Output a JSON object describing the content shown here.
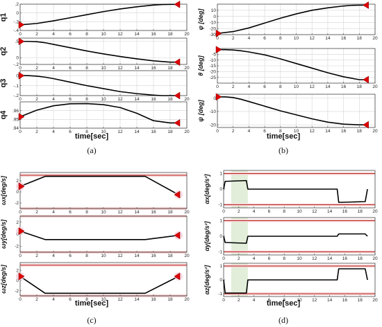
{
  "captions": {
    "a": "(a)",
    "b": "(b)",
    "c": "(c)",
    "d": "(d)"
  },
  "time_label": "time[sec]",
  "chart_data": [
    {
      "id": "q1",
      "type": "line",
      "group": "a",
      "ylabel": "q1",
      "xlim": [
        0,
        20
      ],
      "xticks": [
        0,
        2,
        4,
        6,
        8,
        10,
        12,
        14,
        16,
        18,
        20
      ],
      "ylim": [
        -0.4,
        0.2
      ],
      "yticks": [
        0.2,
        0,
        -0.2,
        -0.4
      ],
      "grid": true,
      "show_xticks": true,
      "series": [
        {
          "x": [
            0,
            2,
            4,
            6,
            8,
            10,
            12,
            14,
            16,
            17,
            18,
            19
          ],
          "y": [
            -0.27,
            -0.24,
            -0.18,
            -0.11,
            -0.04,
            0.03,
            0.09,
            0.14,
            0.18,
            0.19,
            0.195,
            0.195
          ]
        }
      ],
      "markers": [
        {
          "x": 0,
          "y": -0.27,
          "dir": "right"
        },
        {
          "x": 19,
          "y": 0.195,
          "dir": "left"
        }
      ]
    },
    {
      "id": "q2",
      "type": "line",
      "group": "a",
      "ylabel": "q2",
      "xlim": [
        0,
        20
      ],
      "xticks": [
        0,
        2,
        4,
        6,
        8,
        10,
        12,
        14,
        16,
        18,
        20
      ],
      "ylim": [
        -0.2,
        0.6
      ],
      "yticks": [
        0.5,
        0,
        -0.2
      ],
      "grid": true,
      "show_xticks": true,
      "series": [
        {
          "x": [
            0,
            1,
            2,
            3,
            4,
            6,
            8,
            10,
            12,
            14,
            16,
            18,
            19
          ],
          "y": [
            0.5,
            0.5,
            0.49,
            0.46,
            0.41,
            0.31,
            0.21,
            0.12,
            0.04,
            -0.03,
            -0.09,
            -0.13,
            -0.13
          ]
        }
      ],
      "markers": [
        {
          "x": 0,
          "y": 0.5,
          "dir": "right"
        },
        {
          "x": 19,
          "y": -0.13,
          "dir": "left"
        }
      ]
    },
    {
      "id": "q3",
      "type": "line",
      "group": "a",
      "ylabel": "q3",
      "xlim": [
        0,
        20
      ],
      "xticks": [
        0,
        2,
        4,
        6,
        8,
        10,
        12,
        14,
        16,
        18,
        20
      ],
      "ylim": [
        -0.2,
        0.05
      ],
      "yticks": [
        0,
        -0.1,
        -0.2
      ],
      "grid": true,
      "show_xticks": true,
      "series": [
        {
          "x": [
            0,
            1,
            2,
            3,
            4,
            6,
            8,
            10,
            12,
            14,
            16,
            17,
            18,
            19
          ],
          "y": [
            0,
            0,
            -0.005,
            -0.015,
            -0.03,
            -0.065,
            -0.1,
            -0.13,
            -0.16,
            -0.18,
            -0.195,
            -0.2,
            -0.2,
            -0.2
          ]
        }
      ],
      "markers": [
        {
          "x": 0,
          "y": 0,
          "dir": "right"
        },
        {
          "x": 19,
          "y": -0.2,
          "dir": "left"
        }
      ]
    },
    {
      "id": "q4",
      "type": "line",
      "group": "a",
      "ylabel": "q4",
      "xlim": [
        0,
        20
      ],
      "xticks": [
        0,
        2,
        4,
        6,
        8,
        10,
        12,
        14,
        16,
        18,
        20
      ],
      "ylim": [
        0.94,
        0.97
      ],
      "yticks": [
        0.96,
        0.95,
        0.94
      ],
      "grid": true,
      "show_xticks": true,
      "series": [
        {
          "x": [
            0,
            2,
            4,
            6,
            8,
            10,
            12,
            14,
            16,
            18,
            19
          ],
          "y": [
            0.953,
            0.9605,
            0.9655,
            0.9678,
            0.968,
            0.9668,
            0.9635,
            0.957,
            0.9485,
            0.946,
            0.946
          ]
        }
      ],
      "markers": [
        {
          "x": 0,
          "y": 0.953,
          "dir": "right"
        },
        {
          "x": 19,
          "y": 0.946,
          "dir": "left"
        }
      ]
    },
    {
      "id": "phi",
      "type": "line",
      "group": "b",
      "ylabel": "φ [deg]",
      "xlim": [
        0,
        20
      ],
      "xticks": [
        0,
        2,
        4,
        6,
        8,
        10,
        12,
        14,
        16,
        18,
        20
      ],
      "ylim": [
        -30,
        20
      ],
      "yticks": [
        10,
        0,
        -10,
        -20,
        -30
      ],
      "grid": true,
      "show_xticks": true,
      "series": [
        {
          "x": [
            0,
            2,
            4,
            6,
            8,
            10,
            12,
            14,
            16,
            17,
            18,
            19
          ],
          "y": [
            -28,
            -25,
            -19,
            -11,
            -3,
            4,
            10,
            14,
            17,
            18,
            18.3,
            18.3
          ]
        }
      ],
      "markers": [
        {
          "x": 0,
          "y": -28,
          "dir": "right"
        },
        {
          "x": 19,
          "y": 18.3,
          "dir": "left"
        }
      ]
    },
    {
      "id": "theta",
      "type": "line",
      "group": "b",
      "ylabel": "θ [deg]",
      "xlim": [
        0,
        20
      ],
      "xticks": [
        0,
        2,
        4,
        6,
        8,
        10,
        12,
        14,
        16,
        18,
        20
      ],
      "ylim": [
        -30,
        0
      ],
      "yticks": [
        -5,
        -10,
        -15,
        -20,
        -25
      ],
      "grid": true,
      "show_xticks": true,
      "series": [
        {
          "x": [
            0,
            1,
            2,
            3,
            4,
            6,
            8,
            10,
            12,
            14,
            16,
            18,
            19
          ],
          "y": [
            -1,
            -1,
            -1.3,
            -2,
            -3,
            -5.5,
            -9,
            -13,
            -17,
            -21,
            -24.5,
            -27,
            -27
          ]
        }
      ],
      "markers": [
        {
          "x": 0,
          "y": -1,
          "dir": "right"
        },
        {
          "x": 19,
          "y": -27,
          "dir": "left"
        }
      ]
    },
    {
      "id": "psi",
      "type": "line",
      "group": "b",
      "ylabel": "ψ [deg]",
      "xlim": [
        0,
        20
      ],
      "xticks": [
        0,
        2,
        4,
        6,
        8,
        10,
        12,
        14,
        16,
        18,
        20
      ],
      "ylim": [
        -22,
        3
      ],
      "yticks": [
        0,
        -10,
        -20
      ],
      "grid": true,
      "show_xticks": true,
      "series": [
        {
          "x": [
            0,
            1,
            2,
            3,
            4,
            6,
            8,
            10,
            12,
            14,
            16,
            18,
            19
          ],
          "y": [
            1,
            1,
            0.5,
            -0.8,
            -2.5,
            -6,
            -9.5,
            -12.5,
            -15.5,
            -18,
            -19.5,
            -20,
            -20
          ]
        }
      ],
      "markers": [
        {
          "x": 0,
          "y": 1,
          "dir": "right"
        },
        {
          "x": 19,
          "y": -20,
          "dir": "left"
        }
      ]
    },
    {
      "id": "wx",
      "type": "line",
      "group": "c",
      "ylabel": "ωx[deg/s]",
      "xlim": [
        0,
        20
      ],
      "xticks": [
        0,
        2,
        4,
        6,
        8,
        10,
        12,
        14,
        16,
        18,
        20
      ],
      "ylim": [
        -3,
        3.5
      ],
      "yticks": [
        2,
        0,
        -2
      ],
      "grid": false,
      "show_xticks": true,
      "limits": [
        3,
        -3
      ],
      "series": [
        {
          "x": [
            0,
            3,
            15,
            19
          ],
          "y": [
            1,
            2.8,
            2.8,
            -0.5
          ]
        }
      ],
      "markers": [
        {
          "x": 0,
          "y": 1,
          "dir": "right"
        },
        {
          "x": 19,
          "y": -0.5,
          "dir": "left"
        }
      ]
    },
    {
      "id": "wy",
      "type": "line",
      "group": "c",
      "ylabel": "ωy[deg/s]",
      "xlim": [
        0,
        20
      ],
      "xticks": [
        0,
        2,
        4,
        6,
        8,
        10,
        12,
        14,
        16,
        18,
        20
      ],
      "ylim": [
        -3,
        3
      ],
      "yticks": [
        2,
        0,
        -2
      ],
      "grid": false,
      "show_xticks": true,
      "limits": [
        3,
        -3
      ],
      "series": [
        {
          "x": [
            0,
            3,
            15,
            19
          ],
          "y": [
            0.5,
            -0.9,
            -0.9,
            -0.2
          ]
        }
      ],
      "markers": [
        {
          "x": 0,
          "y": 0.5,
          "dir": "right"
        },
        {
          "x": 19,
          "y": -0.2,
          "dir": "left"
        }
      ]
    },
    {
      "id": "wz",
      "type": "line",
      "group": "c",
      "ylabel": "ωz[deg/s]",
      "xlim": [
        0,
        20
      ],
      "xticks": [
        0,
        2,
        4,
        6,
        8,
        10,
        12,
        14,
        16,
        18,
        20
      ],
      "ylim": [
        -3,
        3.5
      ],
      "yticks": [
        2,
        0,
        -2
      ],
      "grid": false,
      "show_xticks": true,
      "limits": [
        3,
        -3
      ],
      "series": [
        {
          "x": [
            0,
            3,
            15,
            19
          ],
          "y": [
            0.8,
            -2.5,
            -2.5,
            0.8
          ]
        }
      ],
      "markers": [
        {
          "x": 0,
          "y": 0.8,
          "dir": "right"
        },
        {
          "x": 19,
          "y": 0.8,
          "dir": "left"
        }
      ]
    },
    {
      "id": "ax",
      "type": "line",
      "group": "d",
      "ylabel": "αx[deg/s²]",
      "xlim": [
        0,
        20
      ],
      "xticks": [
        0,
        2,
        4,
        6,
        8,
        10,
        12,
        14,
        16,
        18,
        20
      ],
      "ylim": [
        -1.2,
        1.2
      ],
      "yticks": [
        1,
        0,
        -1
      ],
      "grid": false,
      "show_xticks": true,
      "limits": [
        1,
        -1
      ],
      "shade": [
        1,
        3.2
      ],
      "series": [
        {
          "x": [
            0,
            0.2,
            3,
            3.2,
            15,
            15.2,
            18.7,
            19
          ],
          "y": [
            0,
            0.5,
            0.55,
            0,
            0,
            -0.85,
            -0.8,
            0
          ]
        }
      ]
    },
    {
      "id": "ay",
      "type": "line",
      "group": "d",
      "ylabel": "αy[deg/s²]",
      "xlim": [
        0,
        20
      ],
      "xticks": [
        0,
        2,
        4,
        6,
        8,
        10,
        12,
        14,
        16,
        18,
        20
      ],
      "ylim": [
        -1.2,
        1.2
      ],
      "yticks": [
        1,
        0,
        -1
      ],
      "grid": false,
      "show_xticks": true,
      "limits": [
        1,
        -1
      ],
      "shade": [
        1,
        3.2
      ],
      "series": [
        {
          "x": [
            0,
            0.2,
            3,
            3.2,
            15,
            15.2,
            18.7,
            19
          ],
          "y": [
            0,
            -0.4,
            -0.45,
            0,
            0,
            0.15,
            0.15,
            0
          ]
        }
      ]
    },
    {
      "id": "az",
      "type": "line",
      "group": "d",
      "ylabel": "αz[deg/s²]",
      "xlim": [
        0,
        20
      ],
      "xticks": [
        0,
        2,
        4,
        6,
        8,
        10,
        12,
        14,
        16,
        18,
        20
      ],
      "ylim": [
        -1.2,
        1.2
      ],
      "yticks": [
        1,
        0,
        -1
      ],
      "grid": false,
      "show_xticks": true,
      "limits": [
        1,
        -1
      ],
      "shade": [
        1,
        3.2
      ],
      "series": [
        {
          "x": [
            0,
            0.2,
            3,
            3.2,
            15,
            15.2,
            18.7,
            19
          ],
          "y": [
            0,
            -0.95,
            -0.95,
            0,
            0,
            0.8,
            0.8,
            0
          ]
        }
      ]
    }
  ]
}
